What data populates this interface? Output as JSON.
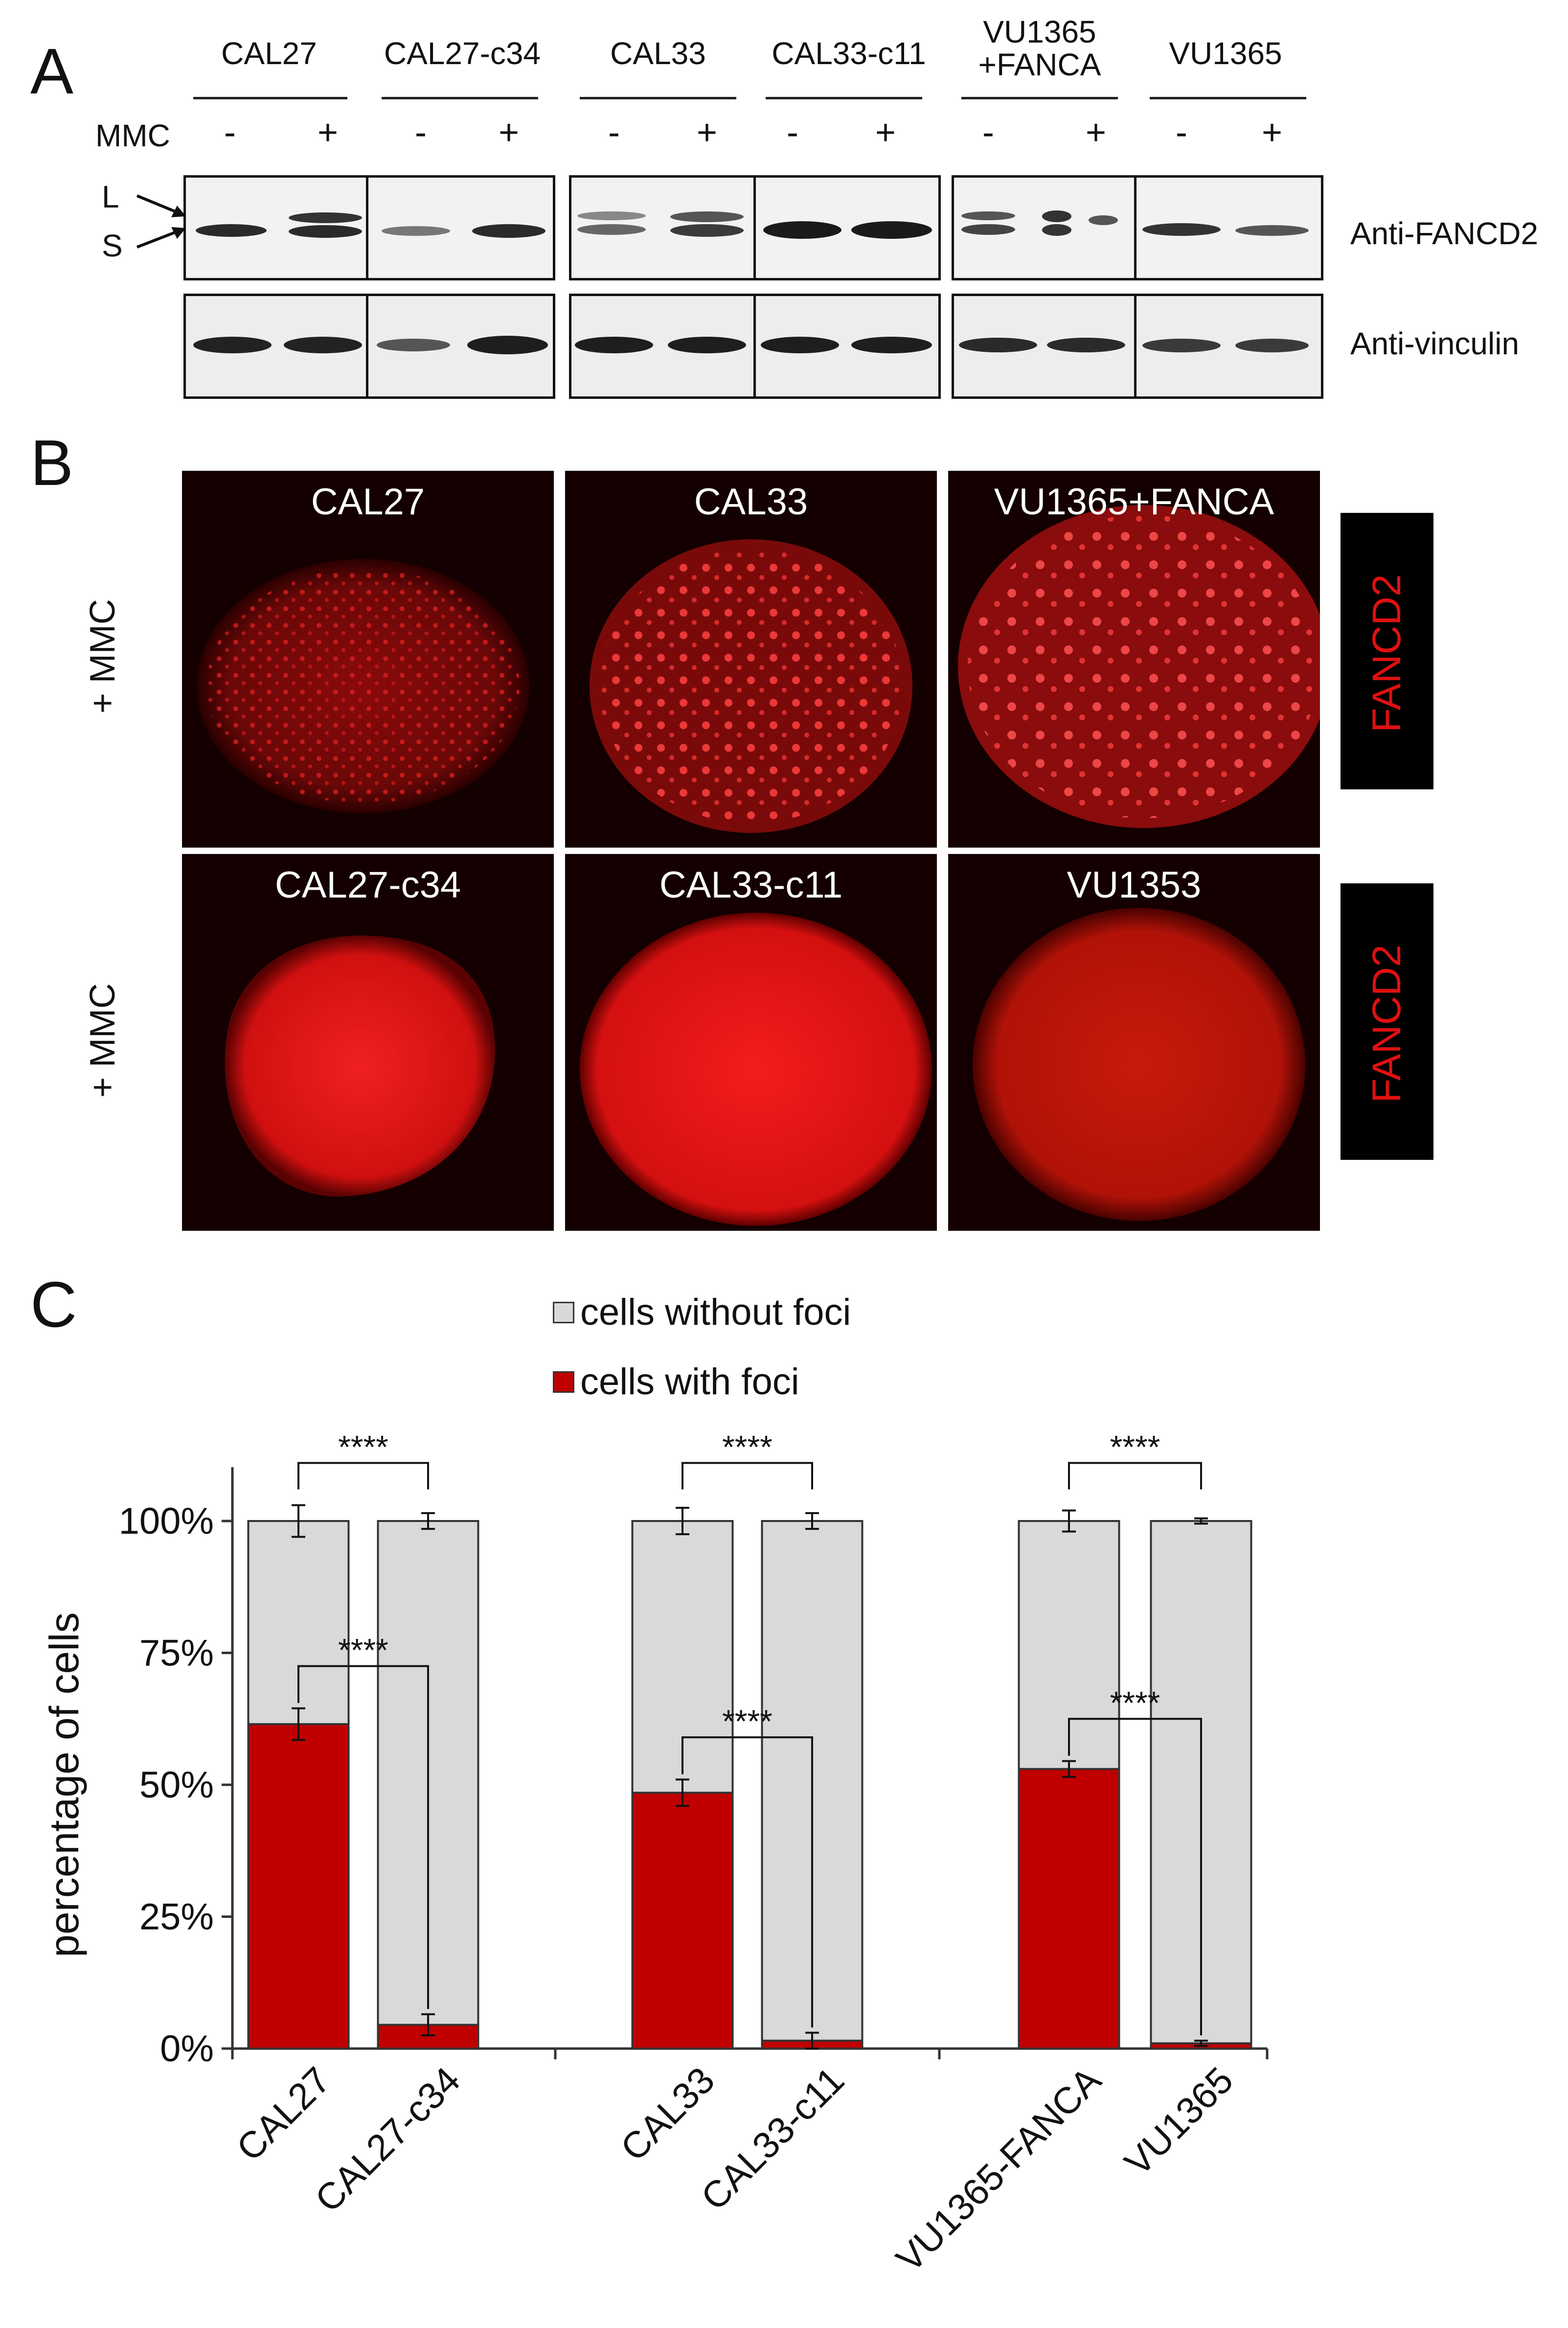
{
  "panel_labels": {
    "a": "A",
    "b": "B",
    "c": "C"
  },
  "panel_a": {
    "cell_lines": [
      {
        "line1": "CAL27",
        "line2": ""
      },
      {
        "line1": "CAL27-c34",
        "line2": ""
      },
      {
        "line1": "CAL33",
        "line2": ""
      },
      {
        "line1": "CAL33-c11",
        "line2": ""
      },
      {
        "line1": "VU1365",
        "line2": "+FANCA"
      },
      {
        "line1": "VU1365",
        "line2": ""
      }
    ],
    "mmc_label": "MMC",
    "mmc_signs": [
      "-",
      "+",
      "-",
      "+",
      "-",
      "+",
      "-",
      "+",
      "-",
      "+",
      "-",
      "+"
    ],
    "band_labels": {
      "long": "L",
      "short": "S"
    },
    "blot_labels": {
      "fancd2": "Anti-FANCD2",
      "vinculin": "Anti-vinculin"
    }
  },
  "panel_b": {
    "row_label": "+ MMC",
    "stain_label": "FANCD2",
    "images": [
      {
        "label": "CAL27",
        "foci": true
      },
      {
        "label": "CAL33",
        "foci": true
      },
      {
        "label": "VU1365+FANCA",
        "foci": true
      },
      {
        "label": "CAL27-c34",
        "foci": false
      },
      {
        "label": "CAL33-c11",
        "foci": false
      },
      {
        "label": "VU1353",
        "foci": false
      }
    ],
    "colors": {
      "stain": "#e01010",
      "background": "#140000"
    }
  },
  "chart_data": {
    "type": "bar",
    "stacked": true,
    "categories": [
      "CAL27",
      "CAL27-c34",
      "CAL33",
      "CAL33-c11",
      "VU1365-FANCA",
      "VU1365"
    ],
    "series": [
      {
        "name": "cells with foci",
        "color": "#c00000",
        "values": [
          61.5,
          4.5,
          48.5,
          1.5,
          53,
          1
        ],
        "errors": [
          3,
          2,
          2.5,
          1.5,
          1.5,
          0.5
        ]
      },
      {
        "name": "cells without foci",
        "color": "#d9d9d9",
        "values": [
          38.5,
          95.5,
          51.5,
          98.5,
          47,
          99
        ],
        "errors": [
          3,
          1.5,
          2.5,
          1.5,
          2,
          0.5
        ]
      }
    ],
    "ylabel": "percentage of cells",
    "ylim": [
      0,
      100
    ],
    "yticks": [
      "0%",
      "25%",
      "50%",
      "75%",
      "100%"
    ],
    "ytick_values": [
      0,
      25,
      50,
      75,
      100
    ],
    "significance": "****",
    "legend_position": "top-center",
    "grid": false
  }
}
